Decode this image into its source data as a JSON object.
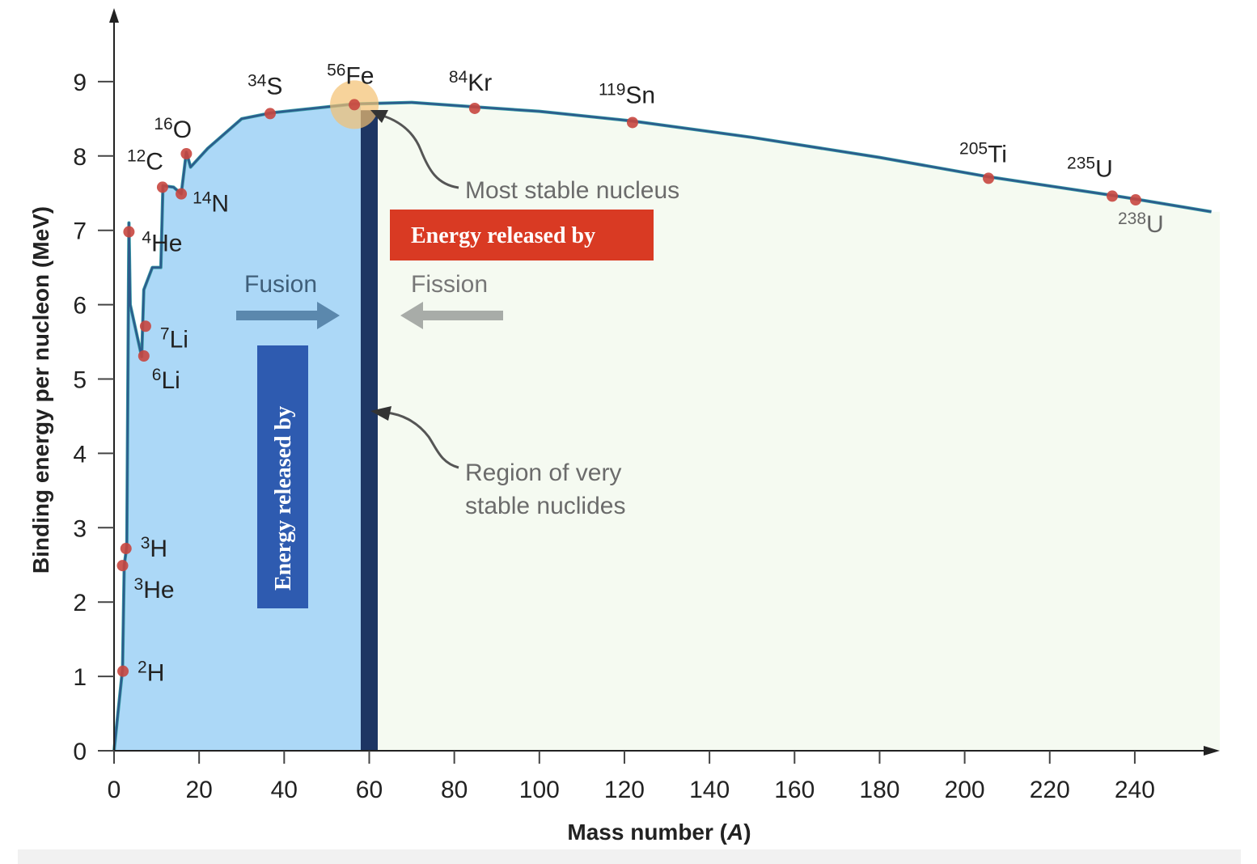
{
  "chart_data": {
    "type": "line",
    "title": "",
    "xlabel_parts": [
      "Mass number (",
      "A",
      ")"
    ],
    "ylabel": "Binding energy per nucleon (MeV)",
    "xlim": [
      0,
      260
    ],
    "ylim": [
      0,
      9.8
    ],
    "xticks": [
      0,
      20,
      40,
      60,
      80,
      100,
      120,
      140,
      160,
      180,
      200,
      220,
      240
    ],
    "yticks": [
      0,
      1,
      2,
      3,
      4,
      5,
      6,
      7,
      8,
      9
    ],
    "grid": false,
    "curve": [
      [
        0,
        0
      ],
      [
        2,
        1.1
      ],
      [
        2.4,
        2.5
      ],
      [
        3,
        2.75
      ],
      [
        3.5,
        7.1
      ],
      [
        3.8,
        6.0
      ],
      [
        6.5,
        5.3
      ],
      [
        7,
        6.2
      ],
      [
        9,
        6.5
      ],
      [
        11,
        6.5
      ],
      [
        11.5,
        7.6
      ],
      [
        14,
        7.58
      ],
      [
        15.8,
        7.49
      ],
      [
        17,
        8.05
      ],
      [
        18,
        7.85
      ],
      [
        22,
        8.1
      ],
      [
        30,
        8.5
      ],
      [
        37,
        8.58
      ],
      [
        56.5,
        8.7
      ],
      [
        70,
        8.72
      ],
      [
        84.8,
        8.66
      ],
      [
        100,
        8.6
      ],
      [
        121.9,
        8.47
      ],
      [
        150,
        8.25
      ],
      [
        180,
        7.98
      ],
      [
        205.6,
        7.72
      ],
      [
        234.7,
        7.47
      ],
      [
        240.2,
        7.42
      ],
      [
        258,
        7.25
      ]
    ],
    "points": [
      {
        "mass": "2",
        "symbol": "H",
        "A": 2.1,
        "BE": 1.07
      },
      {
        "mass": "3",
        "symbol": "He",
        "A": 2,
        "BE": 2.49
      },
      {
        "mass": "3",
        "symbol": "H",
        "A": 2.8,
        "BE": 2.72
      },
      {
        "mass": "4",
        "symbol": "He",
        "A": 3.5,
        "BE": 6.98
      },
      {
        "mass": "6",
        "symbol": "Li",
        "A": 7,
        "BE": 5.31
      },
      {
        "mass": "7",
        "symbol": "Li",
        "A": 7.4,
        "BE": 5.71
      },
      {
        "mass": "12",
        "symbol": "C",
        "A": 11.4,
        "BE": 7.58
      },
      {
        "mass": "14",
        "symbol": "N",
        "A": 15.8,
        "BE": 7.49
      },
      {
        "mass": "16",
        "symbol": "O",
        "A": 17,
        "BE": 8.03
      },
      {
        "mass": "34",
        "symbol": "S",
        "A": 36.7,
        "BE": 8.57
      },
      {
        "mass": "56",
        "symbol": "Fe",
        "A": 56.5,
        "BE": 8.69
      },
      {
        "mass": "84",
        "symbol": "Kr",
        "A": 84.8,
        "BE": 8.64
      },
      {
        "mass": "119",
        "symbol": "Sn",
        "A": 121.9,
        "BE": 8.45
      },
      {
        "mass": "205",
        "symbol": "Ti",
        "A": 205.6,
        "BE": 7.7
      },
      {
        "mass": "235",
        "symbol": "U",
        "A": 234.7,
        "BE": 7.46
      },
      {
        "mass": "238",
        "symbol": "U",
        "A": 240.2,
        "BE": 7.41
      }
    ],
    "regions": {
      "fusion_end_A": 58,
      "stable_band_A": [
        58,
        62
      ],
      "fission_end_A": 260
    },
    "annotations": {
      "most_stable": "Most stable nucleus",
      "stable_region_line1": "Region of very",
      "stable_region_line2": "stable nuclides",
      "fusion": "Fusion",
      "fission": "Fission",
      "energy_fission_box": "Energy released by",
      "energy_fusion_box": "Energy released by"
    },
    "colors": {
      "fusion_fill": "#acd8f7",
      "fission_fill": "#f5faf1",
      "stable_band": "#1d3563",
      "curve": "#2c5b8c",
      "points": "#c8463f",
      "fe_glow": "#f3c170",
      "fission_box": "#d93a23",
      "fusion_box": "#2e5bb0",
      "fusion_arrow": "#5b88ad",
      "fission_arrow": "#a8aca8"
    }
  }
}
